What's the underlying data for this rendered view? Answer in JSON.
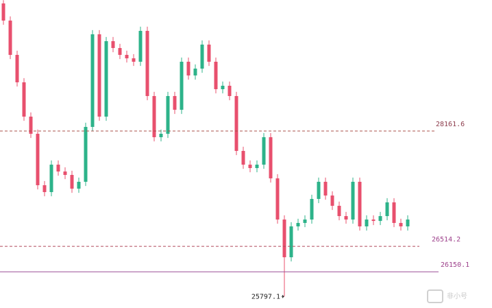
{
  "chart_data": {
    "type": "candlestick",
    "ylim": [
      25633,
      30033
    ],
    "up_color": "#2db38a",
    "down_color": "#e8506e",
    "open": [
      29984,
      29739,
      29249,
      28857,
      28367,
      28122,
      27387,
      27289,
      27681,
      27583,
      27534,
      27338,
      27436,
      28220,
      29543,
      28367,
      29445,
      29347,
      29249,
      29200,
      29151,
      29592,
      28661,
      28073,
      28122,
      28661,
      28465,
      29151,
      28955,
      29053,
      29396,
      29151,
      28759,
      28808,
      28661,
      27877,
      27681,
      27632,
      27681,
      28073,
      27485,
      26897,
      26358,
      26799,
      26848,
      26897,
      27191,
      27436,
      27240,
      27093,
      26946,
      26897,
      27436,
      26799,
      26897,
      26877,
      26946,
      27142,
      26848,
      26799
    ],
    "close": [
      29739,
      29249,
      28857,
      28367,
      28122,
      27387,
      27289,
      27681,
      27583,
      27534,
      27338,
      27436,
      28220,
      29543,
      28367,
      29445,
      29347,
      29249,
      29200,
      29151,
      29592,
      28661,
      28073,
      28122,
      28661,
      28465,
      29151,
      28955,
      29053,
      29396,
      29151,
      28759,
      28808,
      28661,
      27877,
      27681,
      27632,
      27681,
      28073,
      27485,
      26897,
      26358,
      26799,
      26848,
      26897,
      27191,
      27436,
      27240,
      27093,
      26946,
      26897,
      27436,
      26799,
      26897,
      26877,
      26946,
      27142,
      26848,
      26799,
      26897
    ],
    "high": [
      30030,
      29799,
      29309,
      28917,
      28427,
      28182,
      27447,
      27741,
      27741,
      27643,
      27594,
      27496,
      28280,
      29603,
      29603,
      29505,
      29505,
      29407,
      29309,
      29260,
      29652,
      29652,
      28721,
      28182,
      28721,
      28721,
      29211,
      29211,
      29113,
      29456,
      29456,
      29211,
      28868,
      28868,
      28721,
      27937,
      27741,
      27741,
      28133,
      28133,
      27545,
      26957,
      26859,
      26908,
      26957,
      27251,
      27496,
      27496,
      27300,
      27153,
      27006,
      27496,
      27496,
      26957,
      26957,
      27006,
      27202,
      27202,
      26908,
      26957
    ],
    "low": [
      29679,
      29189,
      28797,
      28307,
      28062,
      27327,
      27229,
      27229,
      27523,
      27474,
      27278,
      27278,
      27376,
      28160,
      28307,
      28307,
      29287,
      29189,
      29140,
      29091,
      29091,
      28601,
      28013,
      28013,
      28062,
      28405,
      28405,
      28895,
      28895,
      28993,
      29091,
      28699,
      28699,
      28601,
      27817,
      27621,
      27572,
      27572,
      27621,
      27425,
      26837,
      25797.1,
      26298,
      26739,
      26788,
      26837,
      27131,
      27180,
      27033,
      26886,
      26837,
      26837,
      26739,
      26739,
      26817,
      26817,
      26886,
      26788,
      26739,
      26739
    ],
    "price_lines": [
      {
        "value": 28161.6,
        "style": "dashed",
        "color": "#a8504a",
        "label_color": "#8b3a4a"
      },
      {
        "value": 26514.2,
        "style": "dashed",
        "color": "#b0485a",
        "label_color": "#9c3f8a"
      },
      {
        "value": 26150.1,
        "style": "solid",
        "color": "#9c4f96",
        "label_color": "#9c3f8a"
      }
    ],
    "low_marker": {
      "value": 25797.1,
      "index": 41
    },
    "watermark": "非小号"
  }
}
